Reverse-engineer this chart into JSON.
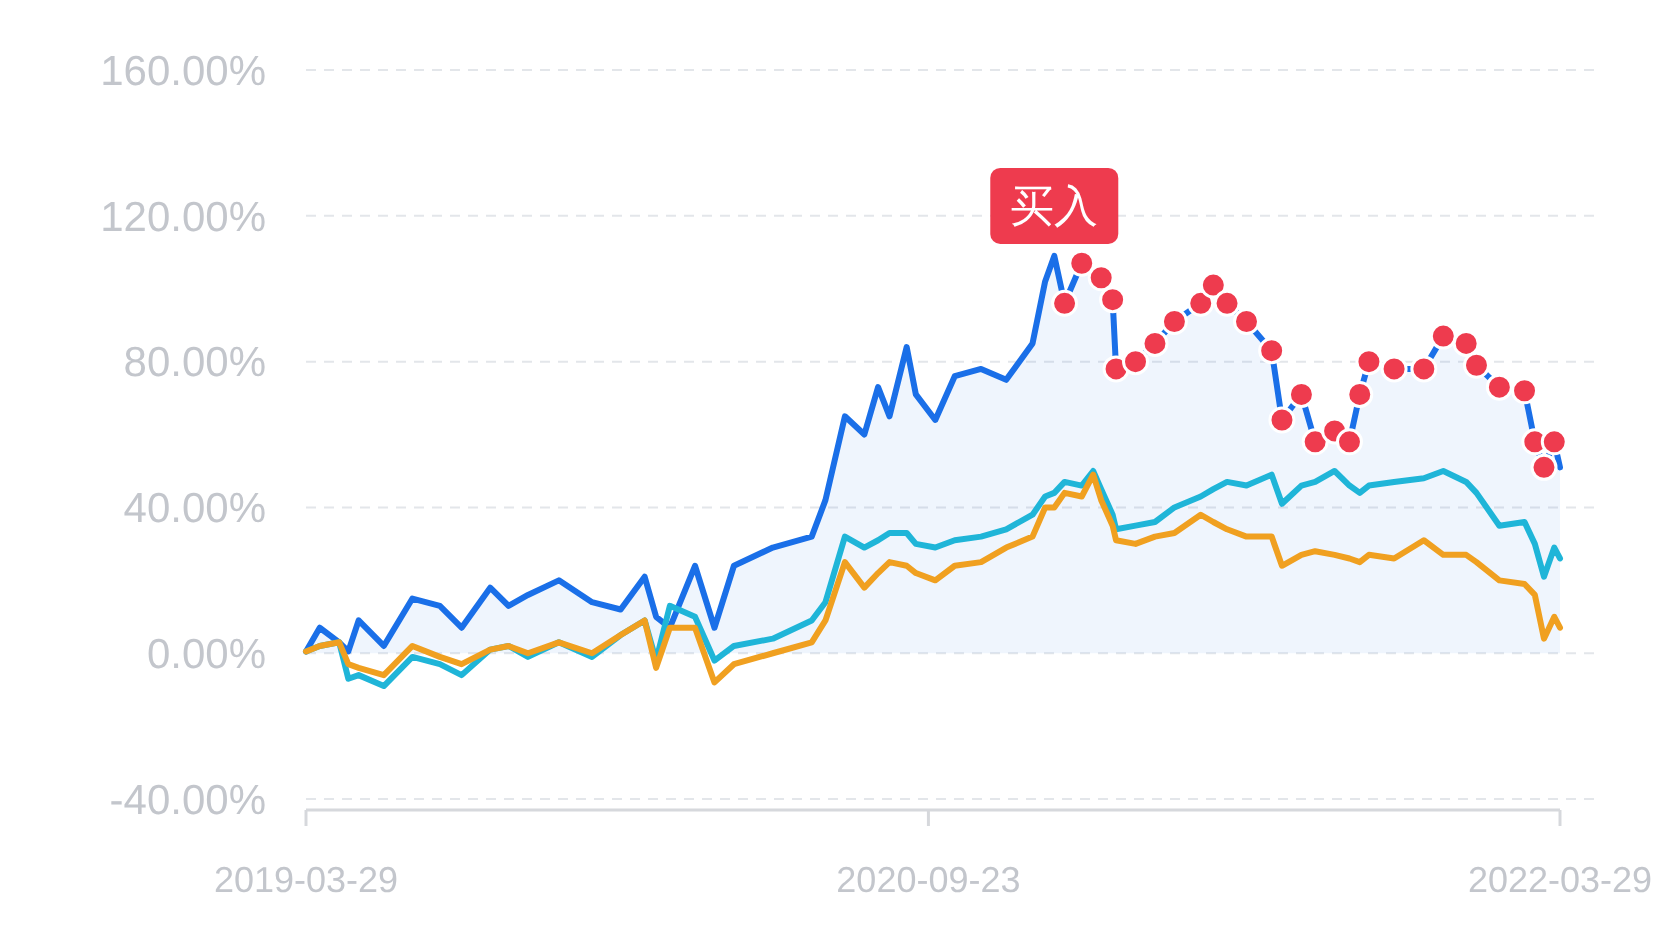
{
  "chart_data": {
    "type": "line",
    "ylim": [
      -43,
      160
    ],
    "yticks": [
      {
        "value": -40,
        "label": "-40.00%"
      },
      {
        "value": 0,
        "label": "0.00%"
      },
      {
        "value": 40,
        "label": "40.00%"
      },
      {
        "value": 80,
        "label": "80.00%"
      },
      {
        "value": 120,
        "label": "120.00%"
      },
      {
        "value": 160,
        "label": "160.00%"
      }
    ],
    "xlim": [
      "2019-03-29",
      "2022-03-29"
    ],
    "xticks": [
      "2019-03-29",
      "2020-09-23",
      "2022-03-29"
    ],
    "grid": "y",
    "annotations": [
      {
        "text": "买入",
        "x": "2021-01-11",
        "y": 109
      }
    ],
    "series": [
      {
        "type": "area",
        "color": "#1a6fe8",
        "x": [
          "2019-03-29",
          "2019-04-10",
          "2019-04-27",
          "2019-05-05",
          "2019-05-14",
          "2019-06-05",
          "2019-06-30",
          "2019-07-24",
          "2019-08-12",
          "2019-09-06",
          "2019-09-22",
          "2019-10-09",
          "2019-11-05",
          "2019-12-04",
          "2019-12-29",
          "2020-01-19",
          "2020-01-29",
          "2020-02-10",
          "2020-03-03",
          "2020-03-20",
          "2020-04-06",
          "2020-05-10",
          "2020-06-13",
          "2020-06-25",
          "2020-07-12",
          "2020-07-29",
          "2020-08-10",
          "2020-08-20",
          "2020-09-04",
          "2020-09-12",
          "2020-09-29",
          "2020-10-16",
          "2020-11-08",
          "2020-11-30",
          "2020-12-23",
          "2021-01-03",
          "2021-01-11",
          "2021-01-20",
          "2021-02-04",
          "2021-02-14",
          "2021-02-21",
          "2021-03-03",
          "2021-03-06",
          "2021-03-23",
          "2021-04-09",
          "2021-04-26",
          "2021-05-19",
          "2021-05-30",
          "2021-06-11",
          "2021-06-28",
          "2021-07-20",
          "2021-07-29",
          "2021-08-15",
          "2021-08-27",
          "2021-09-13",
          "2021-09-26",
          "2021-10-05",
          "2021-10-13",
          "2021-11-04",
          "2021-11-30",
          "2021-12-17",
          "2022-01-06",
          "2022-01-15",
          "2022-02-04",
          "2022-02-26",
          "2022-03-07",
          "2022-03-15",
          "2022-03-24",
          "2022-03-29"
        ],
        "values": [
          0.5,
          7,
          3,
          0.5,
          9,
          2,
          15,
          13,
          7,
          18,
          13,
          16,
          20,
          14,
          12,
          21,
          10,
          7,
          24,
          7,
          24,
          29,
          32,
          42,
          65,
          60,
          73,
          65,
          84,
          71,
          64,
          76,
          78,
          75,
          85,
          102,
          109,
          96,
          107,
          105,
          103,
          97,
          78,
          80,
          85,
          91,
          96,
          101,
          96,
          91,
          83,
          64,
          71,
          58,
          61,
          58,
          71,
          80,
          78,
          78,
          87,
          85,
          79,
          73,
          72,
          58,
          51,
          58,
          51
        ]
      },
      {
        "color": "#1fb5d8",
        "x": [
          "2019-03-29",
          "2019-04-10",
          "2019-04-27",
          "2019-05-05",
          "2019-05-14",
          "2019-06-05",
          "2019-06-30",
          "2019-07-24",
          "2019-08-12",
          "2019-09-06",
          "2019-09-22",
          "2019-10-09",
          "2019-11-05",
          "2019-12-04",
          "2019-12-29",
          "2020-01-19",
          "2020-01-29",
          "2020-02-10",
          "2020-03-03",
          "2020-03-20",
          "2020-04-06",
          "2020-05-10",
          "2020-06-13",
          "2020-06-25",
          "2020-07-12",
          "2020-07-29",
          "2020-08-10",
          "2020-08-20",
          "2020-09-04",
          "2020-09-12",
          "2020-09-29",
          "2020-10-16",
          "2020-11-08",
          "2020-11-30",
          "2020-12-23",
          "2021-01-03",
          "2021-01-11",
          "2021-01-20",
          "2021-02-04",
          "2021-02-14",
          "2021-02-21",
          "2021-03-03",
          "2021-03-06",
          "2021-03-23",
          "2021-04-09",
          "2021-04-26",
          "2021-05-19",
          "2021-05-30",
          "2021-06-11",
          "2021-06-28",
          "2021-07-20",
          "2021-07-29",
          "2021-08-15",
          "2021-08-27",
          "2021-09-13",
          "2021-09-26",
          "2021-10-05",
          "2021-10-13",
          "2021-11-04",
          "2021-11-30",
          "2021-12-17",
          "2022-01-06",
          "2022-01-15",
          "2022-02-04",
          "2022-02-26",
          "2022-03-07",
          "2022-03-15",
          "2022-03-24",
          "2022-03-29"
        ],
        "values": [
          0.5,
          2,
          3,
          -7,
          -6,
          -9,
          -1,
          -3,
          -6,
          1,
          2,
          -1,
          3,
          -1,
          5,
          9,
          -2,
          13,
          10,
          -2,
          2,
          4,
          9,
          14,
          32,
          29,
          31,
          33,
          33,
          30,
          29,
          31,
          32,
          34,
          38,
          43,
          44,
          47,
          46,
          50,
          45,
          38,
          34,
          35,
          36,
          40,
          43,
          45,
          47,
          46,
          49,
          41,
          46,
          47,
          50,
          46,
          44,
          46,
          47,
          48,
          50,
          47,
          44,
          35,
          36,
          30,
          21,
          29,
          26
        ]
      },
      {
        "color": "#f0a020",
        "x": [
          "2019-03-29",
          "2019-04-10",
          "2019-04-27",
          "2019-05-05",
          "2019-05-14",
          "2019-06-05",
          "2019-06-30",
          "2019-07-24",
          "2019-08-12",
          "2019-09-06",
          "2019-09-22",
          "2019-10-09",
          "2019-11-05",
          "2019-12-04",
          "2019-12-29",
          "2020-01-19",
          "2020-01-29",
          "2020-02-10",
          "2020-03-03",
          "2020-03-20",
          "2020-04-06",
          "2020-05-10",
          "2020-06-13",
          "2020-06-25",
          "2020-07-12",
          "2020-07-29",
          "2020-08-10",
          "2020-08-20",
          "2020-09-04",
          "2020-09-12",
          "2020-09-29",
          "2020-10-16",
          "2020-11-08",
          "2020-11-30",
          "2020-12-23",
          "2021-01-03",
          "2021-01-11",
          "2021-01-20",
          "2021-02-04",
          "2021-02-14",
          "2021-02-21",
          "2021-03-03",
          "2021-03-06",
          "2021-03-23",
          "2021-04-09",
          "2021-04-26",
          "2021-05-19",
          "2021-05-30",
          "2021-06-11",
          "2021-06-28",
          "2021-07-20",
          "2021-07-29",
          "2021-08-15",
          "2021-08-27",
          "2021-09-13",
          "2021-09-26",
          "2021-10-05",
          "2021-10-13",
          "2021-11-04",
          "2021-11-30",
          "2021-12-17",
          "2022-01-06",
          "2022-01-15",
          "2022-02-04",
          "2022-02-26",
          "2022-03-07",
          "2022-03-15",
          "2022-03-24",
          "2022-03-29"
        ],
        "values": [
          0.5,
          2,
          3,
          -3,
          -4,
          -6,
          2,
          -1,
          -3,
          1,
          2,
          0,
          3,
          0,
          5,
          9,
          -4,
          7,
          7,
          -8,
          -3,
          0,
          3,
          9,
          25,
          18,
          22,
          25,
          24,
          22,
          20,
          24,
          25,
          29,
          32,
          40,
          40,
          44,
          43,
          49,
          42,
          35,
          31,
          30,
          32,
          33,
          38,
          36,
          34,
          32,
          32,
          24,
          27,
          28,
          27,
          26,
          25,
          27,
          26,
          31,
          27,
          27,
          25,
          20,
          19,
          16,
          4,
          10,
          7
        ]
      },
      {
        "type": "scatter",
        "color": "#ee3b4e",
        "marker": "circle",
        "x": [
          "2021-01-20",
          "2021-02-04",
          "2021-02-21",
          "2021-03-03",
          "2021-03-06",
          "2021-03-23",
          "2021-04-09",
          "2021-04-26",
          "2021-05-19",
          "2021-05-30",
          "2021-06-11",
          "2021-06-28",
          "2021-07-20",
          "2021-07-29",
          "2021-08-15",
          "2021-08-27",
          "2021-09-13",
          "2021-09-26",
          "2021-10-05",
          "2021-10-13",
          "2021-11-04",
          "2021-11-30",
          "2021-12-17",
          "2022-01-06",
          "2022-01-15",
          "2022-02-04",
          "2022-02-26",
          "2022-03-07",
          "2022-03-15",
          "2022-03-24"
        ],
        "values": [
          96,
          107,
          103,
          97,
          78,
          80,
          85,
          91,
          96,
          101,
          96,
          91,
          83,
          64,
          71,
          58,
          61,
          58,
          71,
          80,
          78,
          78,
          87,
          85,
          79,
          73,
          72,
          58,
          51,
          58
        ]
      }
    ]
  }
}
